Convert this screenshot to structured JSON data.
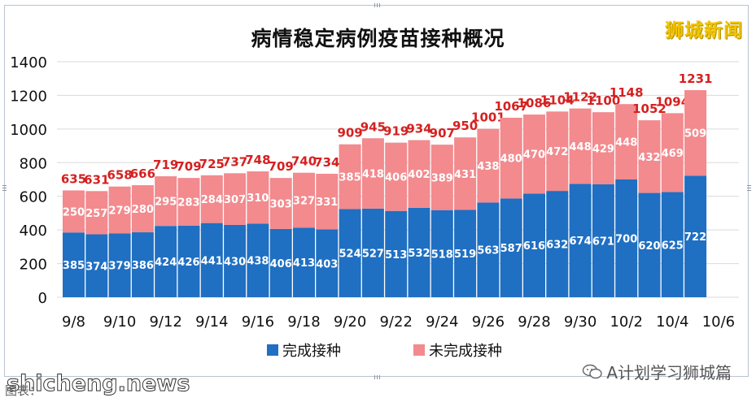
{
  "title": "病情稳定病例疫苗接种概况",
  "brand": "狮城新闻",
  "watermark_right": "A计划学习狮城篇",
  "watermark_left": "shicheng.news",
  "caption": "图表：",
  "colors": {
    "completed": "#1f6fc2",
    "incomplete": "#f28a8e",
    "total_label": "#d62020"
  },
  "chart_data": {
    "type": "bar",
    "stacked": true,
    "categories": [
      "9/8",
      "9/9",
      "9/10",
      "9/11",
      "9/12",
      "9/13",
      "9/14",
      "9/15",
      "9/16",
      "9/17",
      "9/18",
      "9/19",
      "9/20",
      "9/21",
      "9/22",
      "9/23",
      "9/24",
      "9/25",
      "9/26",
      "9/27",
      "9/28",
      "9/29",
      "9/30",
      "10/1",
      "10/2",
      "10/3",
      "10/4",
      "10/5"
    ],
    "tick_labels": [
      "9/8",
      "9/10",
      "9/12",
      "9/14",
      "9/16",
      "9/18",
      "9/20",
      "9/22",
      "9/24",
      "9/26",
      "9/28",
      "9/30",
      "10/2",
      "10/4",
      "10/6"
    ],
    "series": [
      {
        "name": "完成接种",
        "values": [
          385,
          374,
          379,
          386,
          424,
          426,
          441,
          430,
          438,
          406,
          413,
          403,
          524,
          527,
          513,
          532,
          518,
          519,
          563,
          587,
          616,
          632,
          674,
          671,
          700,
          620,
          625,
          722
        ]
      },
      {
        "name": "未完成接种",
        "values": [
          250,
          257,
          279,
          280,
          295,
          283,
          284,
          307,
          310,
          303,
          327,
          331,
          385,
          418,
          406,
          402,
          389,
          431,
          438,
          480,
          470,
          472,
          448,
          429,
          448,
          432,
          469,
          509
        ]
      }
    ],
    "totals": [
      635,
      631,
      658,
      666,
      719,
      709,
      725,
      737,
      748,
      709,
      740,
      734,
      909,
      945,
      919,
      934,
      907,
      950,
      1001,
      1067,
      1086,
      1104,
      1122,
      1100,
      1148,
      1052,
      1094,
      1231
    ],
    "y_ticks": [
      0,
      200,
      400,
      600,
      800,
      1000,
      1200,
      1400
    ],
    "ylim": [
      0,
      1400
    ],
    "grid": true,
    "legend_position": "bottom"
  }
}
